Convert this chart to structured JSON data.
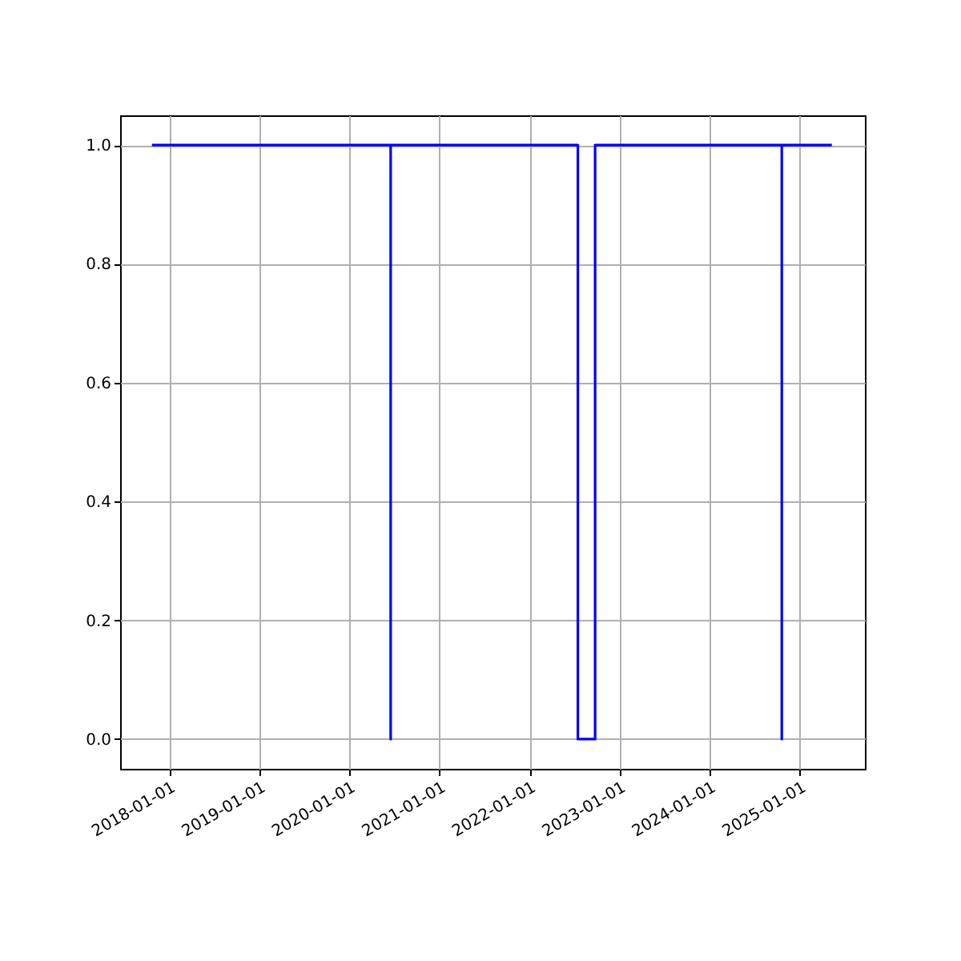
{
  "chart_data": {
    "type": "line",
    "x": [
      "2017-10-23",
      "2020-06-17",
      "2020-06-17",
      "2020-06-17",
      "2022-07-16",
      "2022-07-16",
      "2022-09-24",
      "2022-09-24",
      "2024-10-20",
      "2024-10-20",
      "2024-10-20",
      "2025-05-11"
    ],
    "series": [
      {
        "color": "#0000ff",
        "values": [
          1,
          1,
          0,
          1,
          1,
          0,
          0,
          1,
          1,
          0,
          1,
          1
        ]
      }
    ],
    "xlim": [
      "2017-06-16",
      "2025-09-22"
    ],
    "xticks": [
      "2018-01-01",
      "2019-01-01",
      "2020-01-01",
      "2021-01-01",
      "2022-01-01",
      "2023-01-01",
      "2024-01-01",
      "2025-01-01"
    ],
    "ylim": [
      -0.05,
      1.05
    ],
    "yticks": [
      {
        "value": 0,
        "label": "0.0"
      },
      {
        "value": 0.2,
        "label": "0.2"
      },
      {
        "value": 0.4,
        "label": "0.4"
      },
      {
        "value": 0.6,
        "label": "0.6"
      },
      {
        "value": 0.8,
        "label": "0.8"
      },
      {
        "value": 1,
        "label": "1.0"
      }
    ],
    "grid": true,
    "marker": "none",
    "line_style": "solid"
  }
}
